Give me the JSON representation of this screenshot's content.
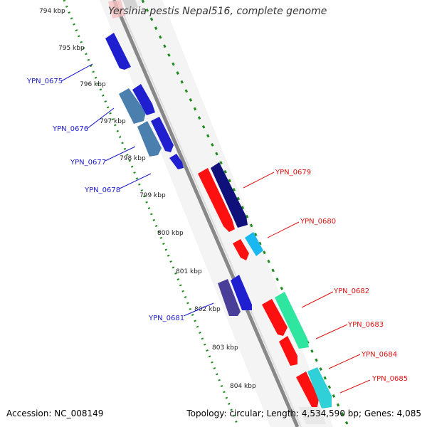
{
  "title": "Yersinia pestis Nepal516, complete genome",
  "accession": "Accession: NC_008149",
  "summary": "Topology: circular; Length: 4,534,590 bp; Genes: 4,085",
  "scale_labels": [
    "794 kbp",
    "795 kbp",
    "796 kbp",
    "797 kbp",
    "798 kbp",
    "799 kbp",
    "800 kbp",
    "801 kbp",
    "802 kbp",
    "803 kbp",
    "804 kbp"
  ],
  "genes": [
    {
      "name": "YPN_0675",
      "strand": "minus",
      "color": "#1f1fd0"
    },
    {
      "name": "YPN_0676",
      "strand": "minus",
      "color": "#4a7fae"
    },
    {
      "name": "YPN_0677",
      "strand": "minus",
      "color": "#1f1fd0"
    },
    {
      "name": "YPN_0678",
      "strand": "minus",
      "color": "#1f1fd0"
    },
    {
      "name": "YPN_0679",
      "strand": "plus",
      "color": "#10107a"
    },
    {
      "name": "YPN_0680",
      "strand": "plus",
      "color": "#19b8f0"
    },
    {
      "name": "YPN_0681",
      "strand": "minus",
      "color": "#1f1fd0"
    },
    {
      "name": "YPN_0682",
      "strand": "plus",
      "color": "#2ee6a0"
    },
    {
      "name": "YPN_0683",
      "strand": "plus",
      "color": "#ff1010"
    },
    {
      "name": "YPN_0684",
      "strand": "plus",
      "color": "#ff1010"
    },
    {
      "name": "YPN_0685",
      "strand": "plus",
      "color": "#30d0d8"
    }
  ],
  "colors": {
    "minus_label": "#1a1acc",
    "plus_label": "#dd1111",
    "backbone": "#888888",
    "tick_dots": "#1f8a1f"
  }
}
